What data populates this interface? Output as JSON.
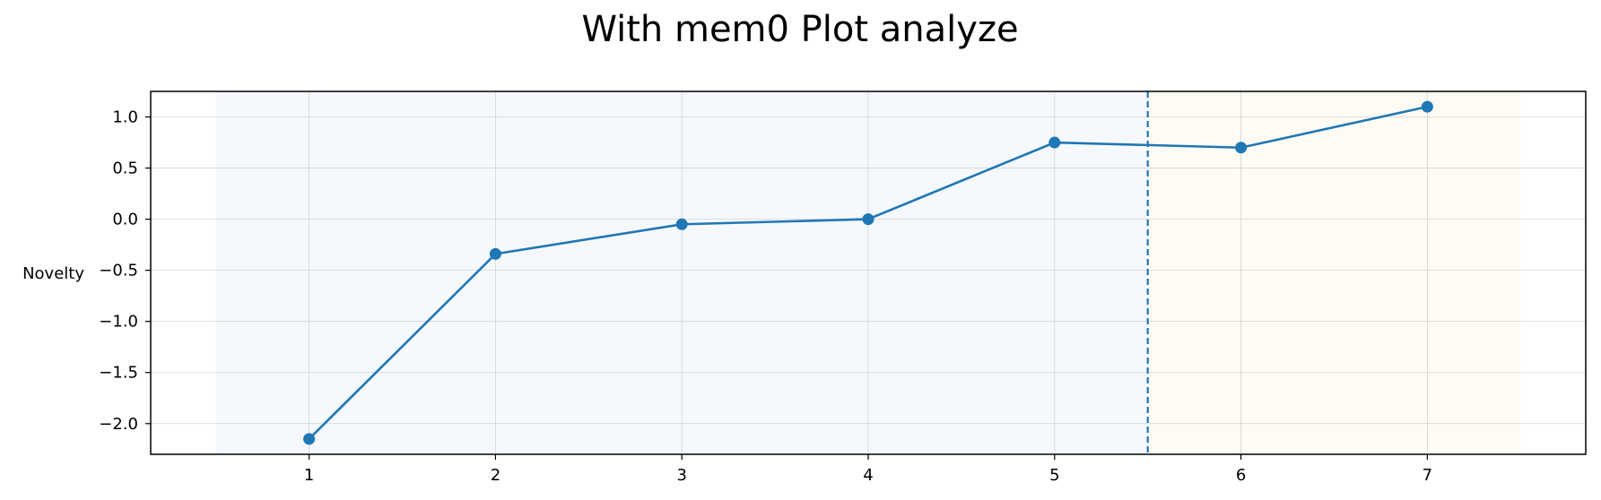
{
  "chart_data": {
    "type": "line",
    "title": "With mem0 Plot analyze",
    "xlabel": "",
    "ylabel": "Novelty",
    "x": [
      1,
      2,
      3,
      4,
      5,
      6,
      7
    ],
    "xlim": [
      0.15,
      7.85
    ],
    "ylim": [
      -2.3,
      1.25
    ],
    "xticks": [
      "1",
      "2",
      "3",
      "4",
      "5",
      "6",
      "7"
    ],
    "yticks": [
      "1.0",
      "0.5",
      "0.0",
      "−0.5",
      "−1.0",
      "−1.5",
      "−2.0"
    ],
    "ytick_values": [
      1.0,
      0.5,
      0.0,
      -0.5,
      -1.0,
      -1.5,
      -2.0
    ],
    "series": [
      {
        "values": [
          -2.15,
          -0.34,
          -0.05,
          0.0,
          0.75,
          0.7,
          1.1
        ],
        "color": "#1f77b4",
        "marker": "circle"
      }
    ],
    "shaded_regions": [
      {
        "x_range": [
          0.5,
          5.5
        ],
        "color": "#f5f8fd"
      },
      {
        "x_range": [
          5.5,
          7.5
        ],
        "color": "#fefaf4"
      }
    ],
    "vertical_line": {
      "x": 5.5,
      "style": "dashed",
      "color": "#1f77b4"
    },
    "grid": true,
    "legend": "none"
  }
}
